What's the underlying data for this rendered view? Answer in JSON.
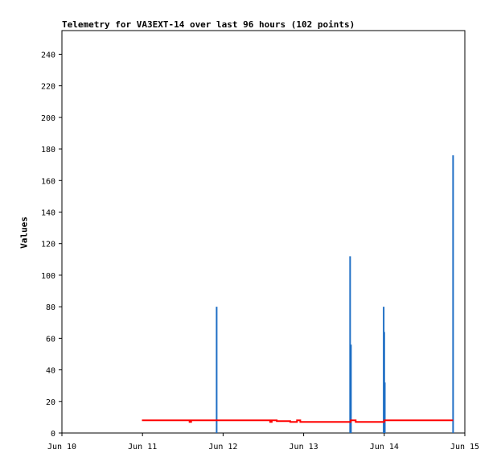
{
  "chart_data": {
    "type": "bar",
    "title": "Telemetry for VA3EXT-14 over last 96 hours (102 points)",
    "xlabel": "",
    "ylabel": "Values",
    "ylim": [
      0,
      255
    ],
    "xlim": [
      "2024-06-10T00:00",
      "2024-06-15T00:00"
    ],
    "x_ticks": [
      "Jun 10",
      "Jun 11",
      "Jun 12",
      "Jun 13",
      "Jun 14",
      "Jun 15"
    ],
    "y_ticks": [
      0,
      20,
      40,
      60,
      80,
      100,
      120,
      140,
      160,
      180,
      200,
      220,
      240
    ],
    "grid": false,
    "series": [
      {
        "type": "bar",
        "color": "#1f6fc5",
        "points": [
          {
            "x": "2024-06-11T22:05",
            "y": 80
          },
          {
            "x": "2024-06-13T13:50",
            "y": 112
          },
          {
            "x": "2024-06-13T14:05",
            "y": 56
          },
          {
            "x": "2024-06-13T23:50",
            "y": 80
          },
          {
            "x": "2024-06-14T00:00",
            "y": 64
          },
          {
            "x": "2024-06-14T00:10",
            "y": 32
          },
          {
            "x": "2024-06-14T20:30",
            "y": 176
          }
        ]
      },
      {
        "type": "line",
        "color": "#ff0000",
        "points": [
          {
            "x": "2024-06-10T23:50",
            "y": 8
          },
          {
            "x": "2024-06-11T14:00",
            "y": 8
          },
          {
            "x": "2024-06-11T14:00",
            "y": 7
          },
          {
            "x": "2024-06-11T14:30",
            "y": 7
          },
          {
            "x": "2024-06-11T14:30",
            "y": 8
          },
          {
            "x": "2024-06-12T14:00",
            "y": 8
          },
          {
            "x": "2024-06-12T14:00",
            "y": 7
          },
          {
            "x": "2024-06-12T14:30",
            "y": 7
          },
          {
            "x": "2024-06-12T14:30",
            "y": 8
          },
          {
            "x": "2024-06-12T16:00",
            "y": 8
          },
          {
            "x": "2024-06-12T16:00",
            "y": 7.5
          },
          {
            "x": "2024-06-12T20:00",
            "y": 7.5
          },
          {
            "x": "2024-06-12T20:00",
            "y": 7
          },
          {
            "x": "2024-06-12T22:00",
            "y": 7
          },
          {
            "x": "2024-06-12T22:00",
            "y": 8
          },
          {
            "x": "2024-06-12T23:00",
            "y": 8
          },
          {
            "x": "2024-06-12T23:00",
            "y": 7
          },
          {
            "x": "2024-06-13T14:00",
            "y": 7
          },
          {
            "x": "2024-06-13T14:00",
            "y": 8
          },
          {
            "x": "2024-06-13T15:30",
            "y": 8
          },
          {
            "x": "2024-06-13T15:30",
            "y": 7
          },
          {
            "x": "2024-06-14T00:00",
            "y": 7
          },
          {
            "x": "2024-06-14T00:00",
            "y": 8
          },
          {
            "x": "2024-06-14T20:30",
            "y": 8
          }
        ]
      }
    ]
  }
}
